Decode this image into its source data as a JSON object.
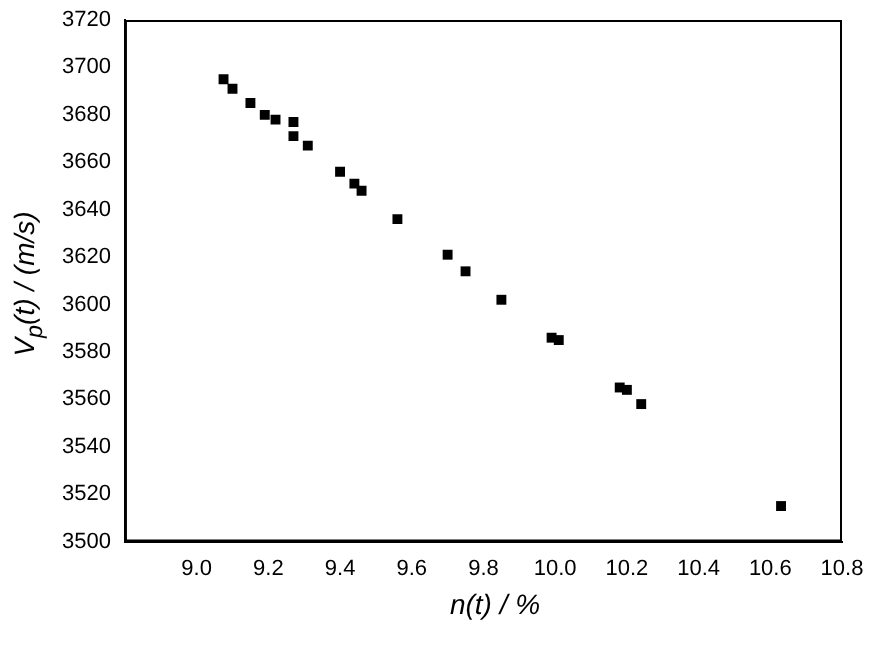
{
  "chart_data": {
    "type": "scatter",
    "xlabel": "n(t) / %",
    "ylabel": "V$_{p}$(t) / (m/s)",
    "x": [
      9.075,
      9.1,
      9.15,
      9.19,
      9.22,
      9.27,
      9.27,
      9.31,
      9.4,
      9.44,
      9.46,
      9.56,
      9.7,
      9.75,
      9.85,
      9.99,
      10.01,
      10.18,
      10.2,
      10.24,
      10.63
    ],
    "series": [
      {
        "color": "#000000",
        "values": [
          3695,
          3691,
          3685,
          3680,
          3678,
          3677,
          3671,
          3667,
          3656,
          3651,
          3648,
          3636,
          3621,
          3614,
          3602,
          3586,
          3585,
          3565,
          3564,
          3558,
          3515
        ]
      }
    ],
    "xlim": [
      8.8,
      10.8
    ],
    "xticks": [
      {
        "value": 9.0,
        "label": "9.0"
      },
      9.2,
      9.4,
      9.6,
      9.8,
      {
        "value": 10.0,
        "label": "10.0"
      },
      10.2,
      10.4,
      10.6,
      10.8
    ],
    "ylim": [
      3500,
      3720
    ],
    "yticks": [
      3500,
      3520,
      3540,
      3560,
      3580,
      3600,
      3620,
      3640,
      3660,
      3680,
      3700,
      3720
    ],
    "grid": false,
    "legend": false,
    "marker": "square"
  }
}
